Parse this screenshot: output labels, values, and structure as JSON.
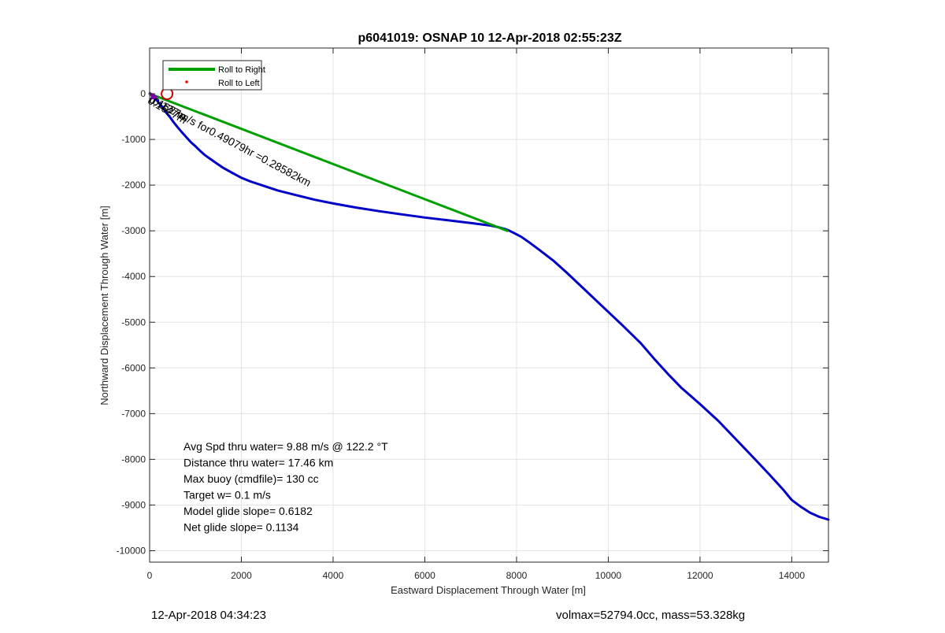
{
  "chart_data": {
    "type": "line",
    "title": "p6041019: OSNAP 10 12-Apr-2018 02:55:23Z",
    "xlabel": "Eastward Displacement Through Water [m]",
    "ylabel": "Northward Displacement Through Water [m]",
    "xlim": [
      0,
      14800
    ],
    "ylim": [
      -10250,
      1000
    ],
    "xticks": [
      0,
      2000,
      4000,
      6000,
      8000,
      10000,
      12000,
      14000
    ],
    "yticks": [
      0,
      -1000,
      -2000,
      -3000,
      -4000,
      -5000,
      -6000,
      -7000,
      -8000,
      -9000,
      -10000
    ],
    "grid": true,
    "legend_position": "top-left",
    "legend": [
      {
        "label": "Roll to Right",
        "color": "#00a000",
        "style": "line"
      },
      {
        "label": "Roll to Left",
        "color": "#ff0000",
        "style": "dot"
      }
    ],
    "series": [
      {
        "color": "#0000c8",
        "x": [
          0,
          50,
          100,
          150,
          200,
          280,
          350,
          450,
          520,
          600,
          700,
          800,
          900,
          1000,
          1100,
          1200,
          1400,
          1600,
          1800,
          2000,
          2200,
          2500,
          2800,
          3200,
          3600,
          4000,
          4500,
          5000,
          5500,
          6000,
          6500,
          7000,
          7400,
          7600,
          7750,
          7850,
          7950,
          8100,
          8300,
          8500,
          8800,
          9100,
          9500,
          9900,
          10300,
          10700,
          11000,
          11300,
          11600,
          12000,
          12400,
          12800,
          13200,
          13500,
          13800,
          14000,
          14200,
          14400,
          14600,
          14800
        ],
        "y": [
          0,
          -30,
          -80,
          -130,
          -200,
          -290,
          -400,
          -520,
          -620,
          -720,
          -840,
          -950,
          -1060,
          -1150,
          -1250,
          -1340,
          -1480,
          -1620,
          -1730,
          -1840,
          -1920,
          -2020,
          -2120,
          -2220,
          -2320,
          -2400,
          -2490,
          -2570,
          -2640,
          -2710,
          -2770,
          -2830,
          -2880,
          -2920,
          -2960,
          -3000,
          -3050,
          -3130,
          -3270,
          -3420,
          -3650,
          -3920,
          -4300,
          -4680,
          -5060,
          -5450,
          -5800,
          -6130,
          -6440,
          -6790,
          -7160,
          -7580,
          -8000,
          -8320,
          -8650,
          -8890,
          -9040,
          -9170,
          -9260,
          -9320
        ]
      },
      {
        "color": "#00a000",
        "x": [
          0,
          7800
        ],
        "y": [
          0,
          -3000
        ]
      }
    ],
    "annotations": [
      {
        "text": "0.1627m/s for0.49079hr =0.28582km",
        "x": 60,
        "y": -20,
        "rotation": 28
      },
      {
        "text": "0.127m",
        "x": 130,
        "y": -60,
        "rotation": 28
      },
      {
        "text": "0.1627m",
        "x": 30,
        "y": -40,
        "rotation": 30
      }
    ],
    "marker": {
      "x": 380,
      "y": 0,
      "color": "#cc0000"
    },
    "stats_text": [
      "Avg Spd thru water=  9.88 m/s @ 122.2 °T",
      "Distance thru water= 17.46 km",
      "Max buoy (cmdfile)= 130 cc",
      "Target w= 0.1 m/s",
      "Model glide slope= 0.6182",
      "Net glide slope= 0.1134"
    ]
  },
  "footer": {
    "timestamp": "12-Apr-2018 04:34:23",
    "params": "volmax=52794.0cc, mass=53.328kg"
  }
}
